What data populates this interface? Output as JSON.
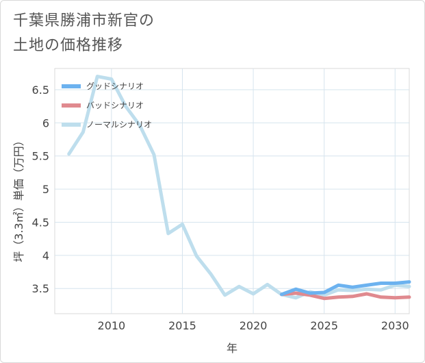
{
  "title_line1": "千葉県勝浦市新官の",
  "title_line2": "土地の価格推移",
  "chart_data": {
    "type": "line",
    "xlabel": "年",
    "ylabel": "坪（3.3㎡）単価（万円）",
    "xlim": [
      2006,
      2031
    ],
    "ylim": [
      3.12,
      6.82
    ],
    "x_ticks": [
      2010,
      2015,
      2020,
      2025,
      2030
    ],
    "y_ticks": [
      3.5,
      4,
      4.5,
      5,
      5.5,
      6,
      6.5
    ],
    "grid": true,
    "legend_position": "top-left",
    "series": [
      {
        "name": "グッドシナリオ",
        "color": "#6cb2ef",
        "x": [
          2022,
          2023,
          2024,
          2025,
          2026,
          2027,
          2028,
          2029,
          2030,
          2031
        ],
        "values": [
          3.41,
          3.49,
          3.43,
          3.44,
          3.55,
          3.52,
          3.55,
          3.58,
          3.58,
          3.6
        ]
      },
      {
        "name": "バッドシナリオ",
        "color": "#e08a8f",
        "x": [
          2022,
          2023,
          2024,
          2025,
          2026,
          2027,
          2028,
          2029,
          2030,
          2031
        ],
        "values": [
          3.41,
          3.43,
          3.4,
          3.35,
          3.37,
          3.38,
          3.42,
          3.37,
          3.36,
          3.37
        ]
      },
      {
        "name": "ノーマルシナリオ",
        "color": "#bedeed",
        "x": [
          2007,
          2008,
          2009,
          2010,
          2011,
          2012,
          2013,
          2014,
          2015,
          2016,
          2017,
          2018,
          2019,
          2020,
          2021,
          2022,
          2023,
          2024,
          2025,
          2026,
          2027,
          2028,
          2029,
          2030,
          2031
        ],
        "values": [
          5.53,
          5.86,
          6.7,
          6.66,
          6.25,
          5.96,
          5.52,
          4.33,
          4.47,
          3.99,
          3.72,
          3.4,
          3.53,
          3.42,
          3.56,
          3.41,
          3.36,
          3.45,
          3.4,
          3.48,
          3.47,
          3.49,
          3.48,
          3.55,
          3.53
        ]
      }
    ]
  }
}
